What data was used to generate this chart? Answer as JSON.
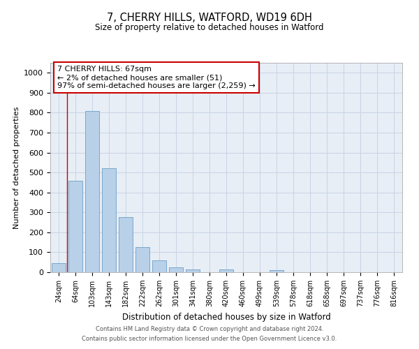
{
  "title_line1": "7, CHERRY HILLS, WATFORD, WD19 6DH",
  "title_line2": "Size of property relative to detached houses in Watford",
  "xlabel": "Distribution of detached houses by size in Watford",
  "ylabel": "Number of detached properties",
  "bar_labels": [
    "24sqm",
    "64sqm",
    "103sqm",
    "143sqm",
    "182sqm",
    "222sqm",
    "262sqm",
    "301sqm",
    "341sqm",
    "380sqm",
    "420sqm",
    "460sqm",
    "499sqm",
    "539sqm",
    "578sqm",
    "618sqm",
    "658sqm",
    "697sqm",
    "737sqm",
    "776sqm",
    "816sqm"
  ],
  "bar_values": [
    45,
    460,
    810,
    520,
    275,
    125,
    60,
    25,
    15,
    0,
    15,
    0,
    0,
    10,
    0,
    0,
    0,
    0,
    0,
    0,
    0
  ],
  "bar_color": "#b8d0e8",
  "bar_edge_color": "#7aa8cc",
  "annotation_text": "7 CHERRY HILLS: 67sqm\n← 2% of detached houses are smaller (51)\n97% of semi-detached houses are larger (2,259) →",
  "annotation_box_color": "#ffffff",
  "annotation_box_edge_color": "#cc0000",
  "red_line_x": 0.5,
  "ylim": [
    0,
    1050
  ],
  "yticks": [
    0,
    100,
    200,
    300,
    400,
    500,
    600,
    700,
    800,
    900,
    1000
  ],
  "grid_color": "#c8d4e4",
  "background_color": "#e8eef6",
  "footer_line1": "Contains HM Land Registry data © Crown copyright and database right 2024.",
  "footer_line2": "Contains public sector information licensed under the Open Government Licence v3.0."
}
